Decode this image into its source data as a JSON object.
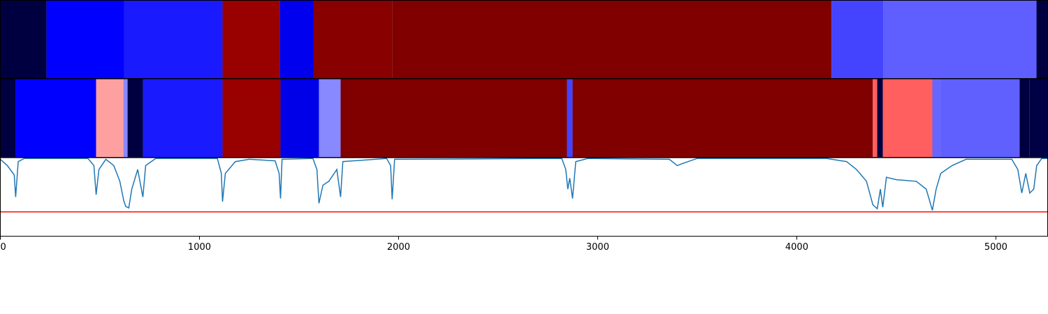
{
  "chart_data": {
    "type": "segmentation",
    "xlim": [
      0,
      5260
    ],
    "xticks": [
      0,
      1000,
      2000,
      3000,
      4000,
      5000
    ],
    "strips": [
      {
        "segments": [
          {
            "start": 0,
            "end": 232,
            "color": "#000040"
          },
          {
            "start": 232,
            "end": 621,
            "color": "#0000ff"
          },
          {
            "start": 621,
            "end": 1116,
            "color": "#1a1aff"
          },
          {
            "start": 1116,
            "end": 1404,
            "color": "#990000"
          },
          {
            "start": 1404,
            "end": 1572,
            "color": "#0000ee"
          },
          {
            "start": 1572,
            "end": 1968,
            "color": "#880000"
          },
          {
            "start": 1968,
            "end": 4175,
            "color": "#800000"
          },
          {
            "start": 4175,
            "end": 4435,
            "color": "#4444ff"
          },
          {
            "start": 4435,
            "end": 5204,
            "color": "#5f5fff"
          },
          {
            "start": 5204,
            "end": 5260,
            "color": "#000040"
          }
        ]
      },
      {
        "segments": [
          {
            "start": 0,
            "end": 77,
            "color": "#000040"
          },
          {
            "start": 77,
            "end": 481,
            "color": "#0000ff"
          },
          {
            "start": 481,
            "end": 618,
            "color": "#ffa0a0"
          },
          {
            "start": 618,
            "end": 639,
            "color": "#8888ff"
          },
          {
            "start": 639,
            "end": 716,
            "color": "#000040"
          },
          {
            "start": 716,
            "end": 1116,
            "color": "#1a1aff"
          },
          {
            "start": 1116,
            "end": 1407,
            "color": "#990000"
          },
          {
            "start": 1407,
            "end": 1600,
            "color": "#0000e8"
          },
          {
            "start": 1600,
            "end": 1709,
            "color": "#8888ff"
          },
          {
            "start": 1709,
            "end": 2846,
            "color": "#800000"
          },
          {
            "start": 2846,
            "end": 2874,
            "color": "#4444ff"
          },
          {
            "start": 2874,
            "end": 4382,
            "color": "#800000"
          },
          {
            "start": 4382,
            "end": 4404,
            "color": "#ff5f5f"
          },
          {
            "start": 4404,
            "end": 4432,
            "color": "#000040"
          },
          {
            "start": 4432,
            "end": 4681,
            "color": "#ff5f5f"
          },
          {
            "start": 4681,
            "end": 4723,
            "color": "#6666ff"
          },
          {
            "start": 4723,
            "end": 5119,
            "color": "#6060ff"
          },
          {
            "start": 5119,
            "end": 5168,
            "color": "#000040"
          },
          {
            "start": 5168,
            "end": 5260,
            "color": "#000044"
          }
        ]
      }
    ],
    "line": {
      "color": "#1f77b4",
      "ylim": [
        0,
        1
      ],
      "x": [
        0,
        35,
        70,
        77,
        90,
        120,
        440,
        470,
        481,
        495,
        530,
        570,
        600,
        620,
        630,
        645,
        660,
        690,
        716,
        730,
        780,
        1090,
        1110,
        1116,
        1130,
        1180,
        1250,
        1380,
        1400,
        1407,
        1415,
        1570,
        1590,
        1600,
        1620,
        1650,
        1690,
        1709,
        1720,
        1940,
        1960,
        1968,
        1980,
        2820,
        2840,
        2850,
        2860,
        2874,
        2890,
        2950,
        3360,
        3400,
        3430,
        3500,
        4150,
        4250,
        4300,
        4350,
        4382,
        4404,
        4420,
        4432,
        4450,
        4500,
        4600,
        4650,
        4681,
        4700,
        4723,
        4780,
        4850,
        5080,
        5110,
        5130,
        5150,
        5170,
        5190,
        5205,
        5230,
        5260
      ],
      "values": [
        0.98,
        0.9,
        0.78,
        0.5,
        0.95,
        0.99,
        0.99,
        0.9,
        0.53,
        0.85,
        0.98,
        0.9,
        0.7,
        0.45,
        0.38,
        0.36,
        0.6,
        0.85,
        0.5,
        0.9,
        0.99,
        0.99,
        0.8,
        0.44,
        0.8,
        0.95,
        0.98,
        0.96,
        0.8,
        0.48,
        0.98,
        0.99,
        0.85,
        0.42,
        0.65,
        0.7,
        0.85,
        0.5,
        0.95,
        0.99,
        0.9,
        0.47,
        0.98,
        0.99,
        0.85,
        0.6,
        0.74,
        0.48,
        0.95,
        0.99,
        0.98,
        0.9,
        0.93,
        0.99,
        0.99,
        0.95,
        0.85,
        0.7,
        0.4,
        0.35,
        0.6,
        0.37,
        0.75,
        0.72,
        0.7,
        0.6,
        0.33,
        0.6,
        0.8,
        0.9,
        0.98,
        0.98,
        0.85,
        0.55,
        0.8,
        0.55,
        0.6,
        0.9,
        0.99,
        0.99
      ],
      "threshold": 0.31,
      "threshold_color": "#ff0000"
    }
  }
}
